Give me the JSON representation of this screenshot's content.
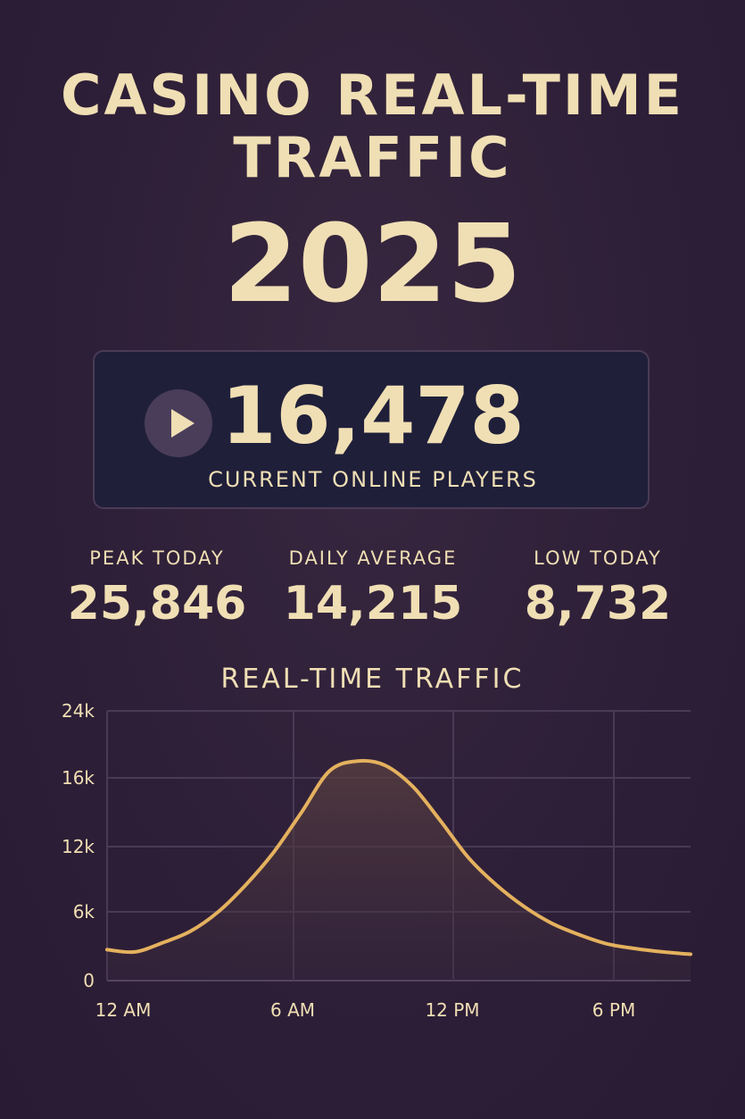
{
  "header": {
    "title": "CASINO REAL-TIME TRAFFIC",
    "year": "2025"
  },
  "counter": {
    "value": "16,478",
    "label": "CURRENT ONLINE PLAYERS",
    "icon": "play-icon"
  },
  "stats": [
    {
      "label": "PEAK TODAY",
      "value": "25,846"
    },
    {
      "label": "DAILY AVERAGE",
      "value": "14,215"
    },
    {
      "label": "LOW TODAY",
      "value": "8,732"
    }
  ],
  "colors": {
    "background": "#2e1f38",
    "accent": "#f0dfb4",
    "line": "#e4b15e",
    "panel": "#1f1f3a"
  },
  "chart_data": {
    "type": "area",
    "title": "REAL-TIME TRAFFIC",
    "xlabel": "",
    "ylabel": "",
    "x_unit": "hour of day",
    "xlim": [
      0,
      21
    ],
    "ylim": [
      0,
      24000
    ],
    "y_ticks": [
      {
        "value": 0,
        "label": "0"
      },
      {
        "value": 6000,
        "label": "6k"
      },
      {
        "value": 12000,
        "label": "12k"
      },
      {
        "value": 16000,
        "label": "16k"
      },
      {
        "value": 24000,
        "label": "24k"
      }
    ],
    "x_ticks": [
      {
        "value": 0,
        "label": "12 AM"
      },
      {
        "value": 6,
        "label": "6 AM"
      },
      {
        "value": 12,
        "label": "12 PM"
      },
      {
        "value": 18,
        "label": "6 PM"
      }
    ],
    "grid": true,
    "series": [
      {
        "values": [
          [
            0,
            2700
          ],
          [
            1,
            2500
          ],
          [
            2,
            3300
          ],
          [
            3,
            4300
          ],
          [
            4,
            6000
          ],
          [
            5,
            8500
          ],
          [
            6,
            11500
          ],
          [
            7,
            14000
          ],
          [
            8,
            16800
          ],
          [
            9,
            18000
          ],
          [
            10,
            17500
          ],
          [
            11,
            15500
          ],
          [
            12,
            13500
          ],
          [
            13,
            11000
          ],
          [
            14,
            8500
          ],
          [
            15,
            6500
          ],
          [
            16,
            5000
          ],
          [
            17,
            4000
          ],
          [
            18,
            3200
          ],
          [
            19,
            2800
          ],
          [
            20,
            2500
          ],
          [
            21,
            2300
          ]
        ]
      }
    ]
  }
}
